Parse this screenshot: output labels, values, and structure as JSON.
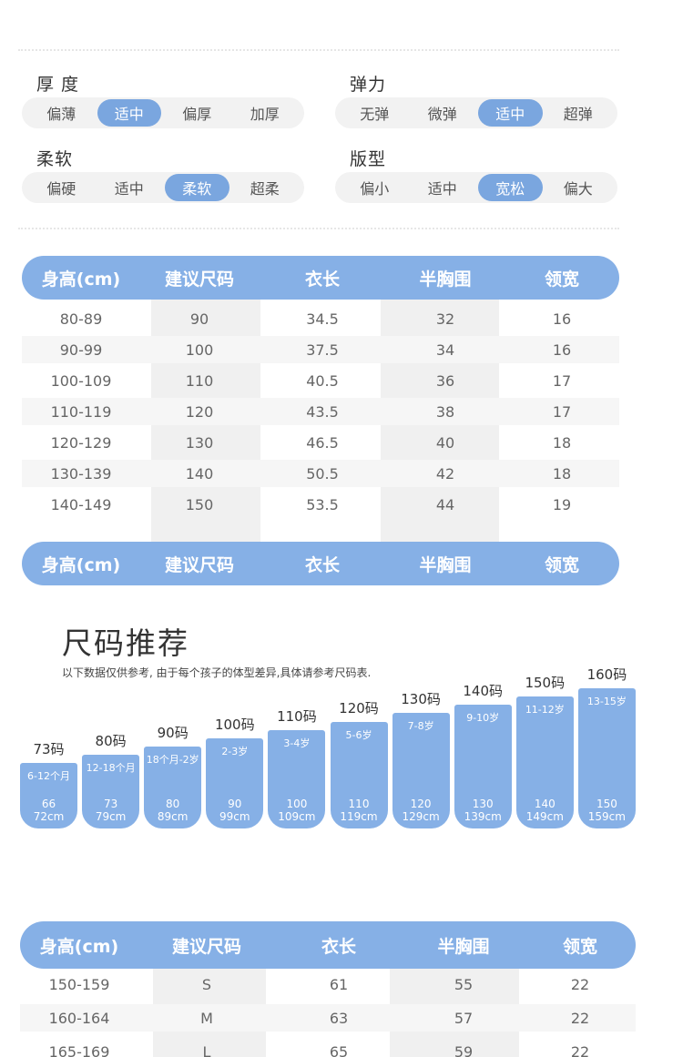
{
  "attributes": [
    {
      "title": "厚 度",
      "options": [
        "偏薄",
        "适中",
        "偏厚",
        "加厚"
      ],
      "selected": 1
    },
    {
      "title": "弹力",
      "options": [
        "无弹",
        "微弹",
        "适中",
        "超弹"
      ],
      "selected": 2
    },
    {
      "title": "柔软",
      "options": [
        "偏硬",
        "适中",
        "柔软",
        "超柔"
      ],
      "selected": 2
    },
    {
      "title": "版型",
      "options": [
        "偏小",
        "适中",
        "宽松",
        "偏大"
      ],
      "selected": 2
    }
  ],
  "table_headers": [
    "身高(cm)",
    "建议尺码",
    "衣长",
    "半胸围",
    "领宽"
  ],
  "table1_rows": [
    [
      "80-89",
      "90",
      "34.5",
      "32",
      "16"
    ],
    [
      "90-99",
      "100",
      "37.5",
      "34",
      "16"
    ],
    [
      "100-109",
      "110",
      "40.5",
      "36",
      "17"
    ],
    [
      "110-119",
      "120",
      "43.5",
      "38",
      "17"
    ],
    [
      "120-129",
      "130",
      "46.5",
      "40",
      "18"
    ],
    [
      "130-139",
      "140",
      "50.5",
      "42",
      "18"
    ],
    [
      "140-149",
      "150",
      "53.5",
      "44",
      "19"
    ]
  ],
  "recommend": {
    "title": "尺码推荐",
    "subtitle": "以下数据仅供参考, 由于每个孩子的体型差异,具体请参考尺码表.",
    "bars": [
      {
        "label": "73码",
        "age": "6-12个月",
        "size": "66",
        "height": "72cm"
      },
      {
        "label": "80码",
        "age": "12-18个月",
        "size": "73",
        "height": "79cm"
      },
      {
        "label": "90码",
        "age": "18个月-2岁",
        "size": "80",
        "height": "89cm"
      },
      {
        "label": "100码",
        "age": "2-3岁",
        "size": "90",
        "height": "99cm"
      },
      {
        "label": "110码",
        "age": "3-4岁",
        "size": "100",
        "height": "109cm"
      },
      {
        "label": "120码",
        "age": "5-6岁",
        "size": "110",
        "height": "119cm"
      },
      {
        "label": "130码",
        "age": "7-8岁",
        "size": "120",
        "height": "129cm"
      },
      {
        "label": "140码",
        "age": "9-10岁",
        "size": "130",
        "height": "139cm"
      },
      {
        "label": "150码",
        "age": "11-12岁",
        "size": "140",
        "height": "149cm"
      },
      {
        "label": "160码",
        "age": "13-15岁",
        "size": "150",
        "height": "159cm"
      }
    ]
  },
  "table2_rows": [
    [
      "150-159",
      "S",
      "61",
      "55",
      "22"
    ],
    [
      "160-164",
      "M",
      "63",
      "57",
      "22"
    ],
    [
      "165-169",
      "L",
      "65",
      "59",
      "22"
    ]
  ],
  "colors": {
    "accent": "#86b0e6",
    "selected": "#7aa6df",
    "band": "#f2f2f2"
  }
}
